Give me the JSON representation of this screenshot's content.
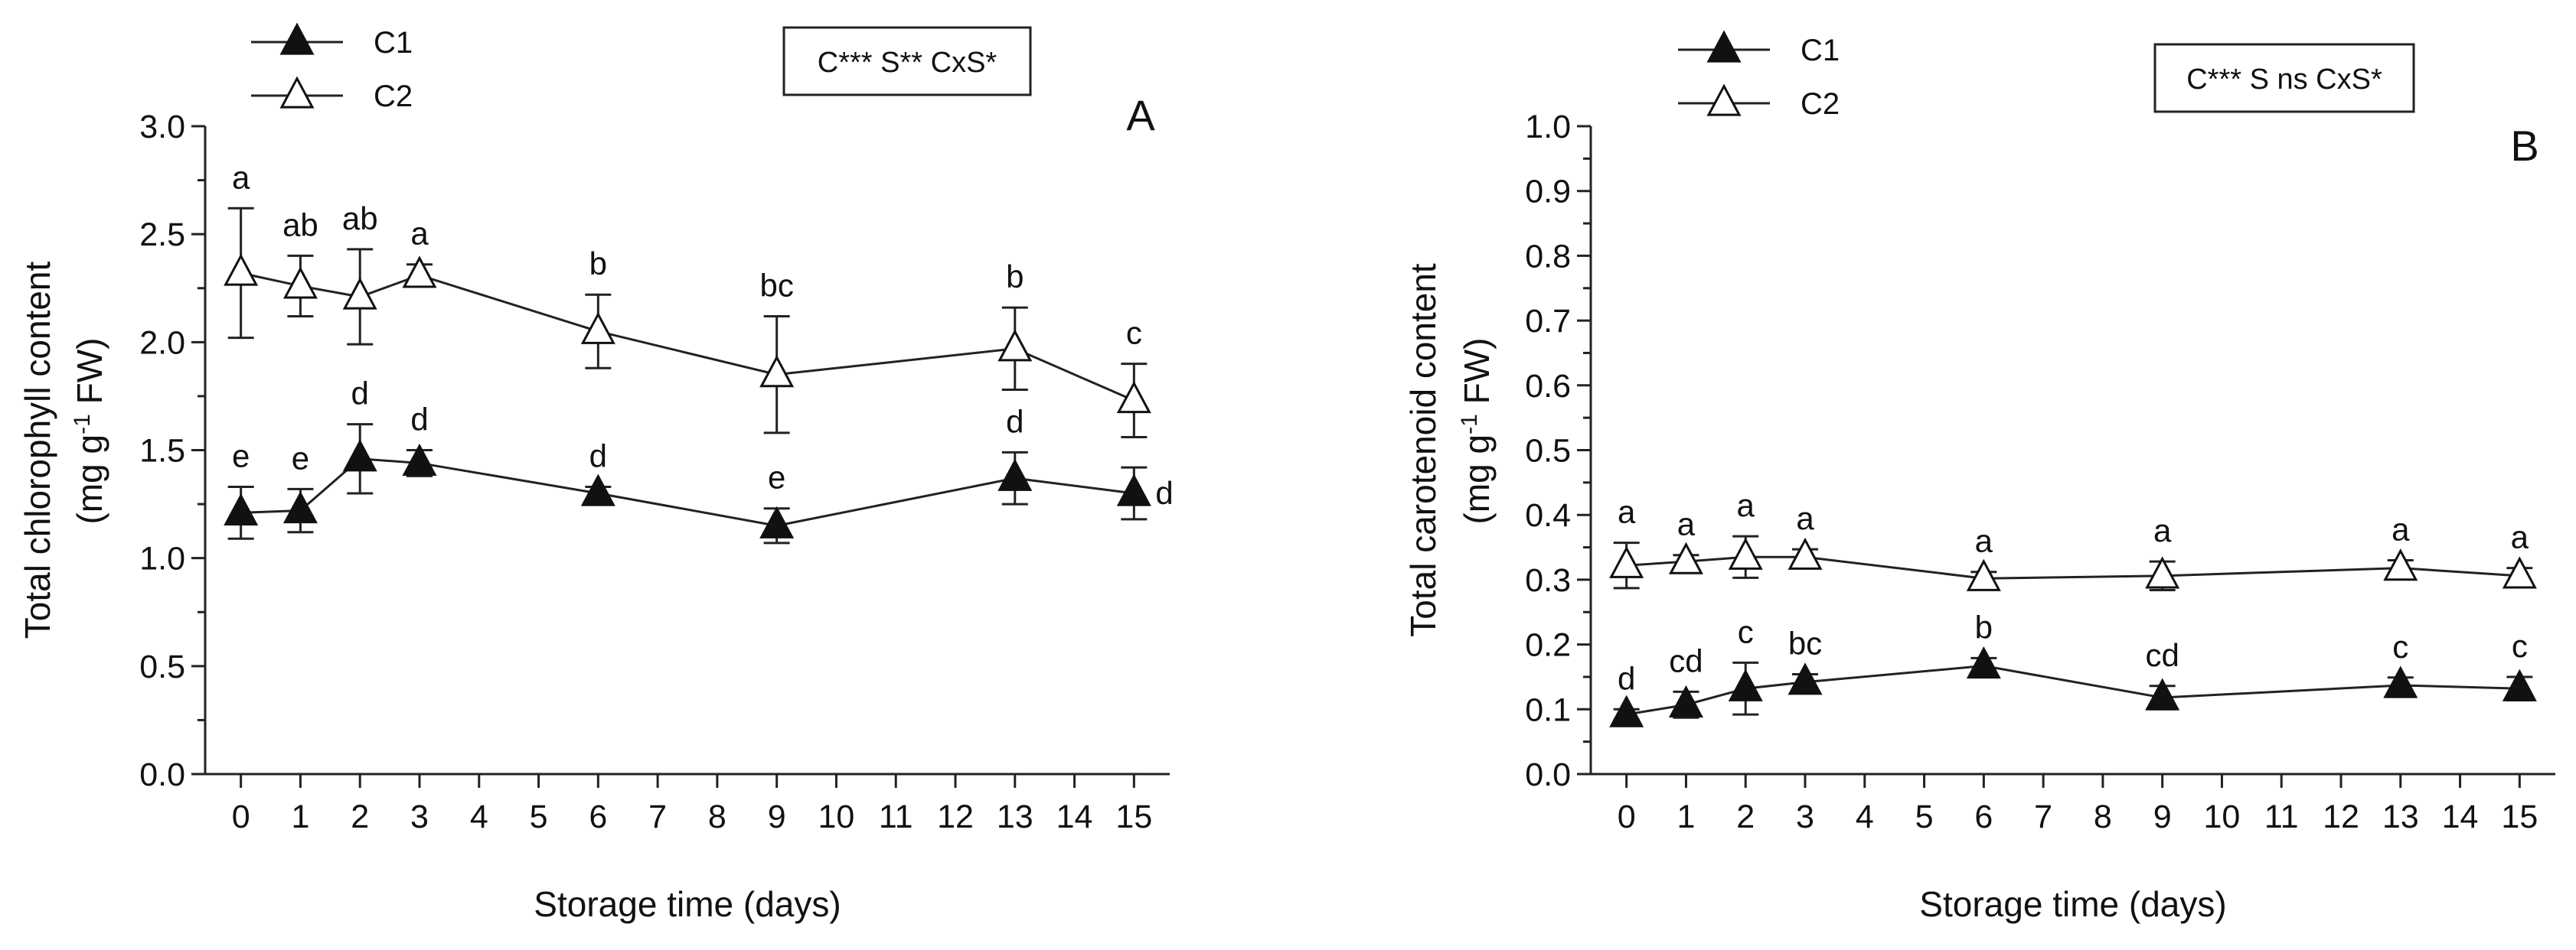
{
  "chart_data": [
    {
      "type": "line",
      "panel_label": "A",
      "stats_box": "C*** S**  CxS*",
      "ylabel": "Total chlorophyll content",
      "ylabel_unit_prefix": "(mg g",
      "ylabel_unit_sup": "-1",
      "ylabel_unit_suffix": " FW)",
      "xlabel": "Storage time (days)",
      "xlim": [
        -0.6,
        15.6
      ],
      "ylim": [
        0,
        3.0
      ],
      "xticks": [
        "0",
        "1",
        "2",
        "3",
        "4",
        "5",
        "6",
        "7",
        "8",
        "9",
        "10",
        "11",
        "12",
        "13",
        "14",
        "15"
      ],
      "yticks": [
        "0.0",
        "0.5",
        "1.0",
        "1.5",
        "2.0",
        "2.5",
        "3.0"
      ],
      "ytick_values": [
        0,
        0.5,
        1.0,
        1.5,
        2.0,
        2.5,
        3.0
      ],
      "legend": [
        "C1",
        "C2"
      ],
      "series": [
        {
          "name": "C1",
          "marker": "filled-triangle",
          "x": [
            0,
            1,
            2,
            3,
            6,
            9,
            13,
            15
          ],
          "values": [
            1.21,
            1.22,
            1.46,
            1.44,
            1.3,
            1.15,
            1.37,
            1.3
          ],
          "errors": [
            0.12,
            0.1,
            0.16,
            0.06,
            0.03,
            0.08,
            0.12,
            0.12
          ],
          "letters": [
            "e",
            "e",
            "d",
            "d",
            "d",
            "e",
            "d",
            "d"
          ]
        },
        {
          "name": "C2",
          "marker": "open-triangle",
          "x": [
            0,
            1,
            2,
            3,
            6,
            9,
            13,
            15
          ],
          "values": [
            2.32,
            2.26,
            2.21,
            2.31,
            2.05,
            1.85,
            1.97,
            1.73
          ],
          "errors": [
            0.3,
            0.14,
            0.22,
            0.05,
            0.17,
            0.27,
            0.19,
            0.17
          ],
          "letters": [
            "a",
            "ab",
            "ab",
            "a",
            "b",
            "bc",
            "b",
            "c"
          ]
        }
      ]
    },
    {
      "type": "line",
      "panel_label": "B",
      "stats_box": "C*** S ns CxS*",
      "ylabel": "Total carotenoid content",
      "ylabel_unit_prefix": "(mg g",
      "ylabel_unit_sup": "-1",
      "ylabel_unit_suffix": " FW)",
      "xlabel": "Storage time (days)",
      "xlim": [
        -0.6,
        15.6
      ],
      "ylim": [
        0,
        1.0
      ],
      "xticks": [
        "0",
        "1",
        "2",
        "3",
        "4",
        "5",
        "6",
        "7",
        "8",
        "9",
        "10",
        "11",
        "12",
        "13",
        "14",
        "15"
      ],
      "yticks": [
        "0.0",
        "0.1",
        "0.2",
        "0.3",
        "0.4",
        "0.5",
        "0.6",
        "0.7",
        "0.8",
        "0.9",
        "1.0"
      ],
      "ytick_values": [
        0,
        0.1,
        0.2,
        0.3,
        0.4,
        0.5,
        0.6,
        0.7,
        0.8,
        0.9,
        1.0
      ],
      "legend": [
        "C1",
        "C2"
      ],
      "series": [
        {
          "name": "C1",
          "marker": "filled-triangle",
          "x": [
            0,
            1,
            2,
            3,
            6,
            9,
            13,
            15
          ],
          "values": [
            0.092,
            0.107,
            0.132,
            0.142,
            0.167,
            0.118,
            0.137,
            0.132
          ],
          "errors": [
            0.008,
            0.02,
            0.04,
            0.012,
            0.012,
            0.018,
            0.012,
            0.018
          ],
          "letters": [
            "d",
            "cd",
            "c",
            "bc",
            "b",
            "cd",
            "c",
            "c"
          ]
        },
        {
          "name": "C2",
          "marker": "open-triangle",
          "x": [
            0,
            1,
            2,
            3,
            6,
            9,
            13,
            15
          ],
          "values": [
            0.322,
            0.328,
            0.335,
            0.335,
            0.302,
            0.306,
            0.318,
            0.306
          ],
          "errors": [
            0.035,
            0.01,
            0.032,
            0.012,
            0.01,
            0.022,
            0.012,
            0.012
          ],
          "letters": [
            "a",
            "a",
            "a",
            "a",
            "a",
            "a",
            "a",
            "a"
          ]
        }
      ]
    }
  ]
}
